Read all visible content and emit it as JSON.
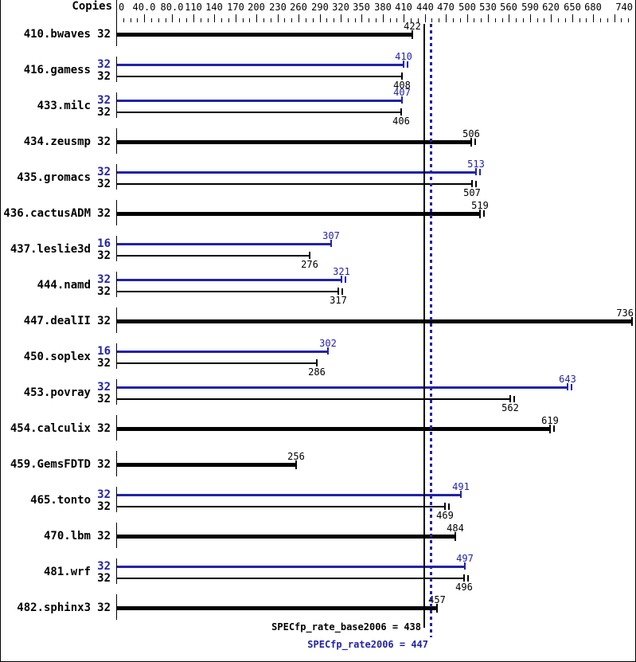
{
  "chart_data": {
    "type": "bar",
    "orientation": "horizontal",
    "copies_header": "Copies",
    "xlim": [
      0,
      740
    ],
    "minor_tick_step": 10,
    "grid": false,
    "colors": {
      "base": "#000000",
      "peak": "#2222aa"
    },
    "x_ticks": [
      {
        "value": 0,
        "label": "0"
      },
      {
        "value": 40,
        "label": "40.0"
      },
      {
        "value": 80,
        "label": "80.0"
      },
      {
        "value": 110,
        "label": "110"
      },
      {
        "value": 140,
        "label": "140"
      },
      {
        "value": 170,
        "label": "170"
      },
      {
        "value": 200,
        "label": "200"
      },
      {
        "value": 230,
        "label": "230"
      },
      {
        "value": 260,
        "label": "260"
      },
      {
        "value": 290,
        "label": "290"
      },
      {
        "value": 320,
        "label": "320"
      },
      {
        "value": 350,
        "label": "350"
      },
      {
        "value": 380,
        "label": "380"
      },
      {
        "value": 410,
        "label": "410"
      },
      {
        "value": 440,
        "label": "440"
      },
      {
        "value": 470,
        "label": "470"
      },
      {
        "value": 500,
        "label": "500"
      },
      {
        "value": 530,
        "label": "530"
      },
      {
        "value": 560,
        "label": "560"
      },
      {
        "value": 590,
        "label": "590"
      },
      {
        "value": 620,
        "label": "620"
      },
      {
        "value": 650,
        "label": "650"
      },
      {
        "value": 680,
        "label": "680"
      },
      {
        "value": 710,
        "label": ""
      },
      {
        "value": 740,
        "label": "740"
      }
    ],
    "benchmarks": [
      {
        "name": "410.bwaves",
        "bars": [
          {
            "series": "base",
            "copies": "32",
            "value": 422,
            "thick": true
          }
        ]
      },
      {
        "name": "416.gamess",
        "bars": [
          {
            "series": "peak",
            "copies": "32",
            "value": 410,
            "range_tick": true
          },
          {
            "series": "base",
            "copies": "32",
            "value": 408
          }
        ]
      },
      {
        "name": "433.milc",
        "bars": [
          {
            "series": "peak",
            "copies": "32",
            "value": 407
          },
          {
            "series": "base",
            "copies": "32",
            "value": 406
          }
        ]
      },
      {
        "name": "434.zeusmp",
        "bars": [
          {
            "series": "base",
            "copies": "32",
            "value": 506,
            "thick": true,
            "range_tick": true
          }
        ]
      },
      {
        "name": "435.gromacs",
        "bars": [
          {
            "series": "peak",
            "copies": "32",
            "value": 513,
            "range_tick": true
          },
          {
            "series": "base",
            "copies": "32",
            "value": 507,
            "range_tick": true
          }
        ]
      },
      {
        "name": "436.cactusADM",
        "bars": [
          {
            "series": "base",
            "copies": "32",
            "value": 519,
            "thick": true,
            "range_tick": true
          }
        ]
      },
      {
        "name": "437.leslie3d",
        "bars": [
          {
            "series": "peak",
            "copies": "16",
            "value": 307
          },
          {
            "series": "base",
            "copies": "32",
            "value": 276
          }
        ]
      },
      {
        "name": "444.namd",
        "bars": [
          {
            "series": "peak",
            "copies": "32",
            "value": 321,
            "range_tick": true
          },
          {
            "series": "base",
            "copies": "32",
            "value": 317,
            "range_tick": true
          }
        ]
      },
      {
        "name": "447.dealII",
        "bars": [
          {
            "series": "base",
            "copies": "32",
            "value": 736,
            "thick": true,
            "range_tick": true
          }
        ]
      },
      {
        "name": "450.soplex",
        "bars": [
          {
            "series": "peak",
            "copies": "16",
            "value": 302
          },
          {
            "series": "base",
            "copies": "32",
            "value": 286
          }
        ]
      },
      {
        "name": "453.povray",
        "bars": [
          {
            "series": "peak",
            "copies": "32",
            "value": 643,
            "range_tick": true
          },
          {
            "series": "base",
            "copies": "32",
            "value": 562,
            "range_tick": true
          }
        ]
      },
      {
        "name": "454.calculix",
        "bars": [
          {
            "series": "base",
            "copies": "32",
            "value": 619,
            "thick": true,
            "range_tick": true
          }
        ]
      },
      {
        "name": "459.GemsFDTD",
        "bars": [
          {
            "series": "base",
            "copies": "32",
            "value": 256,
            "thick": true
          }
        ]
      },
      {
        "name": "465.tonto",
        "bars": [
          {
            "series": "peak",
            "copies": "32",
            "value": 491
          },
          {
            "series": "base",
            "copies": "32",
            "value": 469,
            "range_tick": true
          }
        ]
      },
      {
        "name": "470.lbm",
        "bars": [
          {
            "series": "base",
            "copies": "32",
            "value": 484,
            "thick": true
          }
        ]
      },
      {
        "name": "481.wrf",
        "bars": [
          {
            "series": "peak",
            "copies": "32",
            "value": 497
          },
          {
            "series": "base",
            "copies": "32",
            "value": 496,
            "range_tick": true
          }
        ]
      },
      {
        "name": "482.sphinx3",
        "bars": [
          {
            "series": "base",
            "copies": "32",
            "value": 457,
            "thick": true
          }
        ]
      }
    ],
    "reference_lines": [
      {
        "name": "base",
        "label": "SPECfp_rate_base2006 = 438",
        "value": 438,
        "style": "solid",
        "color": "#000000"
      },
      {
        "name": "peak",
        "label": "SPECfp_rate2006 = 447",
        "value": 447,
        "style": "dotted",
        "color": "#2222aa"
      }
    ]
  }
}
